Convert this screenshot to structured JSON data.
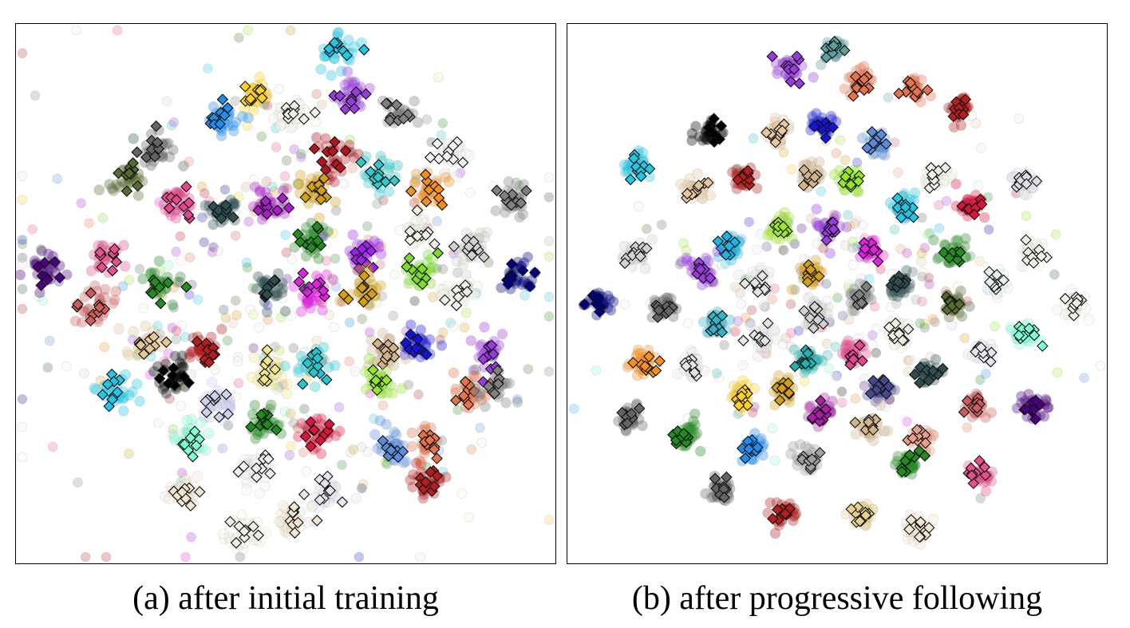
{
  "chart_data": [
    {
      "type": "scatter",
      "title": "(a) after initial training",
      "xlim": [
        0,
        100
      ],
      "ylim": [
        0,
        100
      ],
      "grid": false,
      "marker_styles": [
        "circle (faded samples)",
        "diamond (outlined samples)"
      ],
      "clusters": [
        {
          "color": "#1ec8e6",
          "x": 60.0,
          "y": 97.0
        },
        {
          "color": "#ffd21e",
          "x": 44.0,
          "y": 89.0
        },
        {
          "color": "#9a3be0",
          "x": 62.5,
          "y": 88.0
        },
        {
          "color": "#1e8cf0",
          "x": 38.0,
          "y": 84.0
        },
        {
          "color": "#f0f0e6",
          "x": 51.0,
          "y": 84.5
        },
        {
          "color": "#808080",
          "x": 72.0,
          "y": 85.0
        },
        {
          "color": "#646464",
          "x": 25.0,
          "y": 78.0
        },
        {
          "color": "#b4141e",
          "x": 59.5,
          "y": 77.0
        },
        {
          "color": "#f0f0f0",
          "x": 82.0,
          "y": 77.0
        },
        {
          "color": "#556b2f",
          "x": 19.0,
          "y": 72.0
        },
        {
          "color": "#32c8c8",
          "x": 68.0,
          "y": 73.0
        },
        {
          "color": "#e6468c",
          "x": 29.0,
          "y": 68.0
        },
        {
          "color": "#d4a010",
          "x": 56.0,
          "y": 70.0
        },
        {
          "color": "#aa1ec8",
          "x": 47.0,
          "y": 67.0
        },
        {
          "color": "#2f4f4f",
          "x": 38.0,
          "y": 66.0
        },
        {
          "color": "#f5901e",
          "x": 78.0,
          "y": 70.0
        },
        {
          "color": "#808080",
          "x": 94.0,
          "y": 68.0
        },
        {
          "color": "#f0f0e6",
          "x": 76.0,
          "y": 62.0
        },
        {
          "color": "#d2d2d2",
          "x": 86.0,
          "y": 59.0
        },
        {
          "color": "#228b22",
          "x": 55.0,
          "y": 60.0
        },
        {
          "color": "#a020f0",
          "x": 65.5,
          "y": 58.0
        },
        {
          "color": "#e6508c",
          "x": 15.0,
          "y": 57.0
        },
        {
          "color": "#4b0082",
          "x": 3.5,
          "y": 54.5
        },
        {
          "color": "#7cdc28",
          "x": 76.0,
          "y": 54.5
        },
        {
          "color": "#000080",
          "x": 95.0,
          "y": 53.5
        },
        {
          "color": "#f0f0e6",
          "x": 83.0,
          "y": 49.5
        },
        {
          "color": "#228b22",
          "x": 25.0,
          "y": 52.0
        },
        {
          "color": "#e61ee6",
          "x": 55.0,
          "y": 50.0
        },
        {
          "color": "#d4a010",
          "x": 65.0,
          "y": 51.0
        },
        {
          "color": "#2f4f4f",
          "x": 47.0,
          "y": 51.0
        },
        {
          "color": "#cd5c5c",
          "x": 13.0,
          "y": 47.5
        },
        {
          "color": "#1414dc",
          "x": 75.5,
          "y": 40.5
        },
        {
          "color": "#e6c896",
          "x": 23.0,
          "y": 40.0
        },
        {
          "color": "#b41e1e",
          "x": 34.0,
          "y": 39.0
        },
        {
          "color": "#9a3be0",
          "x": 89.5,
          "y": 38.5
        },
        {
          "color": "#d2b48c",
          "x": 69.0,
          "y": 38.5
        },
        {
          "color": "#1ec8e6",
          "x": 17.0,
          "y": 31.0
        },
        {
          "color": "#000000",
          "x": 28.0,
          "y": 34.0
        },
        {
          "color": "#f0e68c",
          "x": 47.0,
          "y": 35.0
        },
        {
          "color": "#20c8d2",
          "x": 55.0,
          "y": 36.0
        },
        {
          "color": "#96e628",
          "x": 67.5,
          "y": 33.0
        },
        {
          "color": "#e6734b",
          "x": 86.0,
          "y": 31.0
        },
        {
          "color": "#d2d2f0",
          "x": 37.0,
          "y": 29.0
        },
        {
          "color": "#808080",
          "x": 90.0,
          "y": 32.0
        },
        {
          "color": "#228b22",
          "x": 46.5,
          "y": 25.0
        },
        {
          "color": "#dc143c",
          "x": 56.0,
          "y": 22.5
        },
        {
          "color": "#7fffd4",
          "x": 31.0,
          "y": 22.0
        },
        {
          "color": "#5a8cdc",
          "x": 70.5,
          "y": 20.0
        },
        {
          "color": "#e6734b",
          "x": 77.5,
          "y": 20.5
        },
        {
          "color": "#f0f0f0",
          "x": 44.0,
          "y": 16.0
        },
        {
          "color": "#b41e1e",
          "x": 77.5,
          "y": 13.5
        },
        {
          "color": "#f0e6d2",
          "x": 30.5,
          "y": 12.0
        },
        {
          "color": "#e6e6f0",
          "x": 58.0,
          "y": 11.5
        },
        {
          "color": "#f0e6d2",
          "x": 51.5,
          "y": 6.5
        },
        {
          "color": "#f0f0e6",
          "x": 41.5,
          "y": 3.5
        }
      ]
    },
    {
      "type": "scatter",
      "title": "(b) after progressive following",
      "xlim": [
        0,
        100
      ],
      "ylim": [
        0,
        100
      ],
      "grid": false,
      "marker_styles": [
        "circle (faded samples)",
        "diamond (outlined samples)"
      ],
      "clusters": [
        {
          "color": "#5f9ea0",
          "x": 49.5,
          "y": 97.5
        },
        {
          "color": "#9a3be0",
          "x": 41.0,
          "y": 93.5
        },
        {
          "color": "#e6734b",
          "x": 54.5,
          "y": 91.0
        },
        {
          "color": "#e6734b",
          "x": 65.0,
          "y": 89.5
        },
        {
          "color": "#b41e1e",
          "x": 73.5,
          "y": 85.5
        },
        {
          "color": "#000000",
          "x": 25.5,
          "y": 81.0
        },
        {
          "color": "#e6c8a0",
          "x": 38.5,
          "y": 81.0
        },
        {
          "color": "#1414dc",
          "x": 47.0,
          "y": 82.5
        },
        {
          "color": "#5a8cdc",
          "x": 58.0,
          "y": 79.0
        },
        {
          "color": "#1ec8e6",
          "x": 11.5,
          "y": 74.5
        },
        {
          "color": "#e6c8a0",
          "x": 22.5,
          "y": 70.0
        },
        {
          "color": "#b41e1e",
          "x": 32.0,
          "y": 72.5
        },
        {
          "color": "#d2b48c",
          "x": 45.0,
          "y": 73.0
        },
        {
          "color": "#96e628",
          "x": 52.0,
          "y": 71.5
        },
        {
          "color": "#f0f0e6",
          "x": 69.0,
          "y": 73.0
        },
        {
          "color": "#dcdce6",
          "x": 86.0,
          "y": 72.0
        },
        {
          "color": "#1ec8e6",
          "x": 63.0,
          "y": 66.5
        },
        {
          "color": "#dc143c",
          "x": 76.0,
          "y": 67.0
        },
        {
          "color": "#a0e628",
          "x": 39.0,
          "y": 62.5
        },
        {
          "color": "#9a3be0",
          "x": 48.5,
          "y": 62.5
        },
        {
          "color": "#d2d2d2",
          "x": 11.0,
          "y": 58.0
        },
        {
          "color": "#1eb4e6",
          "x": 29.0,
          "y": 59.0
        },
        {
          "color": "#e61ee6",
          "x": 56.5,
          "y": 58.5
        },
        {
          "color": "#228b22",
          "x": 72.5,
          "y": 58.0
        },
        {
          "color": "#f0f0e6",
          "x": 88.0,
          "y": 58.0
        },
        {
          "color": "#9a3be0",
          "x": 24.0,
          "y": 54.5
        },
        {
          "color": "#e6e6e6",
          "x": 35.0,
          "y": 52.0
        },
        {
          "color": "#d4a010",
          "x": 45.0,
          "y": 54.0
        },
        {
          "color": "#808080",
          "x": 54.5,
          "y": 49.5
        },
        {
          "color": "#2f4f4f",
          "x": 62.0,
          "y": 52.0
        },
        {
          "color": "#e6f0f0",
          "x": 81.0,
          "y": 52.0
        },
        {
          "color": "#000080",
          "x": 3.5,
          "y": 48.5
        },
        {
          "color": "#646464",
          "x": 16.5,
          "y": 47.5
        },
        {
          "color": "#d2d2d2",
          "x": 46.0,
          "y": 46.0
        },
        {
          "color": "#556b2f",
          "x": 72.5,
          "y": 47.5
        },
        {
          "color": "#f0f0e6",
          "x": 96.0,
          "y": 48.0
        },
        {
          "color": "#32b4c8",
          "x": 26.5,
          "y": 44.0
        },
        {
          "color": "#e6e6e6",
          "x": 35.5,
          "y": 41.5
        },
        {
          "color": "#f0f0e6",
          "x": 62.0,
          "y": 42.5
        },
        {
          "color": "#7fffd4",
          "x": 86.5,
          "y": 42.5
        },
        {
          "color": "#e6e6f0",
          "x": 78.5,
          "y": 38.5
        },
        {
          "color": "#f5901e",
          "x": 13.0,
          "y": 36.5
        },
        {
          "color": "#e6e6e6",
          "x": 22.0,
          "y": 35.5
        },
        {
          "color": "#20b2b2",
          "x": 44.0,
          "y": 37.0
        },
        {
          "color": "#e6468c",
          "x": 53.0,
          "y": 38.0
        },
        {
          "color": "#2f4f4f",
          "x": 67.5,
          "y": 35.0
        },
        {
          "color": "#ffd21e",
          "x": 31.5,
          "y": 30.0
        },
        {
          "color": "#d4a010",
          "x": 39.5,
          "y": 31.5
        },
        {
          "color": "#484890",
          "x": 58.0,
          "y": 31.5
        },
        {
          "color": "#cd5c5c",
          "x": 76.5,
          "y": 28.5
        },
        {
          "color": "#4b0082",
          "x": 88.0,
          "y": 28.0
        },
        {
          "color": "#646464",
          "x": 10.0,
          "y": 26.0
        },
        {
          "color": "#aa1eaa",
          "x": 47.0,
          "y": 27.0
        },
        {
          "color": "#d2b48c",
          "x": 56.0,
          "y": 24.5
        },
        {
          "color": "#e6a08c",
          "x": 66.5,
          "y": 22.0
        },
        {
          "color": "#228b22",
          "x": 21.0,
          "y": 22.5
        },
        {
          "color": "#1e8cf0",
          "x": 34.0,
          "y": 20.0
        },
        {
          "color": "#a0a0a0",
          "x": 44.0,
          "y": 18.0
        },
        {
          "color": "#228b22",
          "x": 63.5,
          "y": 17.5
        },
        {
          "color": "#e6508c",
          "x": 77.5,
          "y": 15.0
        },
        {
          "color": "#646464",
          "x": 27.5,
          "y": 12.0
        },
        {
          "color": "#b41e1e",
          "x": 39.5,
          "y": 7.5
        },
        {
          "color": "#e6d28c",
          "x": 55.0,
          "y": 7.5
        },
        {
          "color": "#f0e6d2",
          "x": 65.5,
          "y": 4.5
        }
      ]
    }
  ],
  "captions": {
    "a": "(a) after initial training",
    "b": "(b) after progressive following"
  }
}
